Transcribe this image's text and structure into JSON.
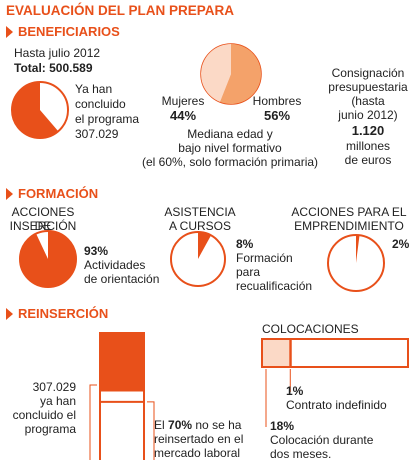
{
  "title": "EVALUACIÓN DEL PLAN PREPARA",
  "colors": {
    "accent": "#e8501a",
    "light": "#fbd9c6",
    "text": "#222222"
  },
  "beneficiarios": {
    "heading": "BENEFICIARIOS",
    "hasta": "Hasta julio 2012",
    "total_label": "Total:",
    "total_value": "500.589",
    "concluded_line1": "Ya han",
    "concluded_line2": "concluido",
    "concluded_line3": "el programa",
    "concluded_value": "307.029",
    "mujeres_label": "Mujeres",
    "mujeres_pct": "44%",
    "hombres_label": "Hombres",
    "hombres_pct": "56%",
    "mediana_line1": "Mediana edad y",
    "mediana_line2": "bajo nivel formativo",
    "mediana_line3": "(el 60%, solo formación primaria)",
    "consig_line1": "Consignación",
    "consig_line2": "presupuestaria",
    "consig_line3": "(hasta",
    "consig_line4": "junio 2012)",
    "consig_value": "1.120",
    "consig_line5": "millones",
    "consig_line6": "de euros"
  },
  "formacion": {
    "heading": "FORMACIÓN",
    "insercion_title1": "ACCIONES DE",
    "insercion_title2": "INSERCIÓN",
    "insercion_pct": "93%",
    "insercion_desc1": "Actividades",
    "insercion_desc2": "de orientación",
    "asistencia_title1": "ASISTENCIA",
    "asistencia_title2": "A CURSOS",
    "asistencia_pct": "8%",
    "asistencia_desc1": "Formación",
    "asistencia_desc2": "para",
    "asistencia_desc3": "recualificación",
    "emprend_title1": "ACCIONES PARA EL",
    "emprend_title2": "EMPRENDIMIENTO",
    "emprend_pct": "2%"
  },
  "reinsercion": {
    "heading": "REINSERCIÓN",
    "left_line1": "307.029",
    "left_line2": "ya han",
    "left_line3": "concluido el",
    "left_line4": "programa",
    "right_line1_pre": "El ",
    "right_line1_bold": "70%",
    "right_line1_post": " no se ha",
    "right_line2": "reinsertado en el",
    "right_line3": "mercado laboral",
    "colocaciones_title": "COLOCACIONES",
    "indef_pct": "1%",
    "indef_label": "Contrato indefinido",
    "dos_pct": "18%",
    "dos_label1": "Colocación durante",
    "dos_label2": "dos meses."
  },
  "chart_data": [
    {
      "type": "pie",
      "name": "Beneficiarios concluidos",
      "slices": [
        {
          "label": "concluido",
          "value": 61.3
        },
        {
          "label": "resto",
          "value": 38.7
        }
      ]
    },
    {
      "type": "pie",
      "name": "Mujeres / Hombres",
      "slices": [
        {
          "label": "Mujeres",
          "value": 44
        },
        {
          "label": "Hombres",
          "value": 56
        }
      ]
    },
    {
      "type": "pie",
      "name": "Acciones de inserción",
      "slices": [
        {
          "label": "Actividades de orientación",
          "value": 93
        },
        {
          "label": "resto",
          "value": 7
        }
      ]
    },
    {
      "type": "pie",
      "name": "Asistencia a cursos",
      "slices": [
        {
          "label": "Formación para recualificación",
          "value": 8
        },
        {
          "label": "resto",
          "value": 92
        }
      ]
    },
    {
      "type": "pie",
      "name": "Acciones para el emprendimiento",
      "slices": [
        {
          "label": "Emprendimiento",
          "value": 2
        },
        {
          "label": "resto",
          "value": 98
        }
      ]
    },
    {
      "type": "bar",
      "name": "Reinserción",
      "categories": [
        "no reinsertado",
        "reinsertado"
      ],
      "values": [
        70,
        30
      ]
    },
    {
      "type": "bar",
      "name": "Colocaciones",
      "categories": [
        "Colocación durante dos meses",
        "Contrato indefinido"
      ],
      "values": [
        18,
        1
      ]
    }
  ]
}
